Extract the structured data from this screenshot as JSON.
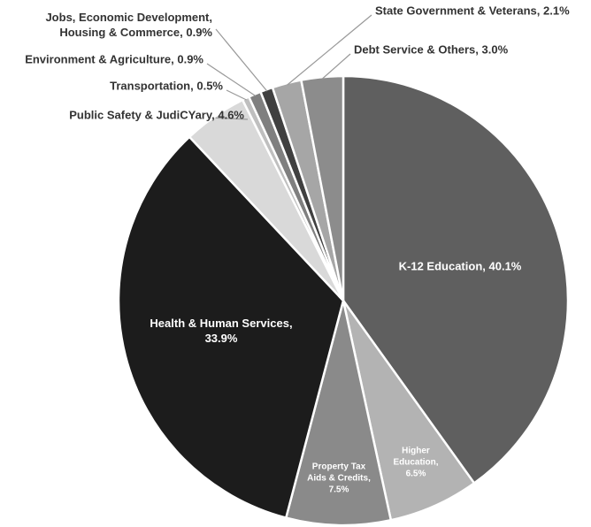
{
  "chart_data": {
    "type": "pie",
    "categories": [
      "K-12 Education",
      "Higher Education",
      "Property Tax Aids & Credits",
      "Health & Human Services",
      "Public Safety & JudiCYary",
      "Transportation",
      "Environment & Agriculture",
      "Jobs, Economic Development, Housing & Commerce",
      "State Government & Veterans",
      "Debt Service & Others"
    ],
    "values": [
      40.1,
      6.5,
      7.5,
      33.9,
      4.6,
      0.5,
      0.9,
      0.9,
      2.1,
      3.0
    ],
    "value_labels": [
      "40.1%",
      "6.5%",
      "7.5%",
      "33.9%",
      "4.6%",
      "0.5%",
      "0.9%",
      "0.9%",
      "2.1%",
      "3.0%"
    ],
    "colors": [
      "#5f5f5f",
      "#b3b3b3",
      "#8a8a8a",
      "#1c1c1c",
      "#d9d9d9",
      "#bfbfbf",
      "#7f7f7f",
      "#404040",
      "#a6a6a6",
      "#8c8c8c"
    ]
  }
}
